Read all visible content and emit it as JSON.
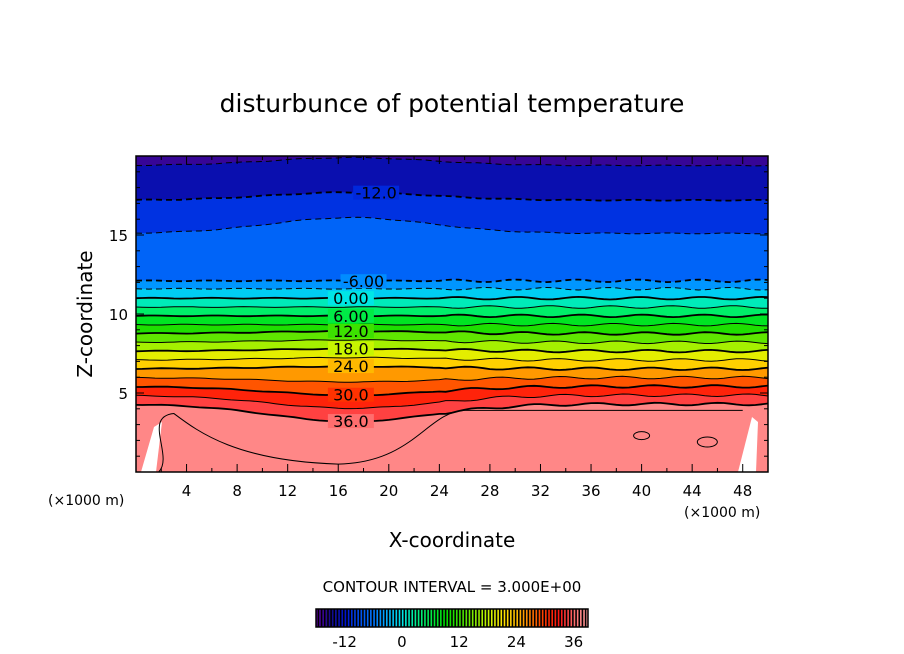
{
  "chart_data": {
    "type": "contour",
    "title": "disturbunce of potential temperature",
    "xlabel": "X-coordinate",
    "ylabel": "Z-coordinate",
    "x_unit": "(×1000 m)",
    "y_unit": "(×1000 m)",
    "xlim": [
      0,
      50
    ],
    "ylim": [
      0,
      20
    ],
    "x_ticks": [
      4,
      8,
      12,
      16,
      20,
      24,
      28,
      32,
      36,
      40,
      44,
      48
    ],
    "y_ticks": [
      5,
      10,
      15
    ],
    "contour_interval_label": "CONTOUR INTERVAL = 3.000E+00",
    "contour_interval": 3,
    "contour_levels": [
      -15,
      -12,
      -9,
      -6,
      -3,
      0,
      3,
      6,
      9,
      12,
      15,
      18,
      21,
      24,
      27,
      30,
      33,
      36
    ],
    "contour_labels": [
      {
        "level": -12,
        "text": "-12.0"
      },
      {
        "level": -6,
        "text": "-6.00"
      },
      {
        "level": 0,
        "text": "0.00"
      },
      {
        "level": 6,
        "text": "6.00"
      },
      {
        "level": 12,
        "text": "12.0"
      },
      {
        "level": 18,
        "text": "18.0"
      },
      {
        "level": 24,
        "text": "24.0"
      },
      {
        "level": 30,
        "text": "30.0"
      },
      {
        "level": 36,
        "text": "36.0"
      }
    ],
    "colorbar": {
      "range": [
        -18,
        39
      ],
      "ticks": [
        -12,
        0,
        12,
        24,
        36
      ]
    }
  }
}
